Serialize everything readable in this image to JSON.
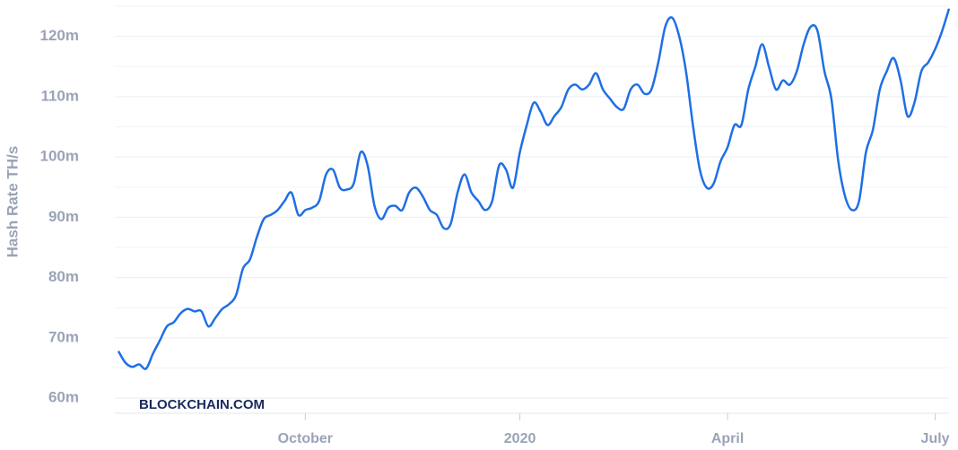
{
  "chart_data": {
    "type": "line",
    "y_label": "Hash Rate TH/s",
    "watermark": "BLOCKCHAIN.COM",
    "categories": [
      null,
      null,
      null,
      null,
      null,
      null,
      null,
      null,
      null,
      null,
      null,
      null,
      null,
      null,
      null,
      null,
      null,
      null,
      null,
      null,
      null,
      null,
      null,
      null,
      null,
      null,
      null,
      "October",
      null,
      null,
      null,
      null,
      null,
      null,
      null,
      null,
      null,
      null,
      null,
      null,
      null,
      null,
      null,
      null,
      null,
      null,
      null,
      null,
      null,
      null,
      null,
      null,
      null,
      null,
      null,
      null,
      null,
      null,
      "2020",
      null,
      null,
      null,
      null,
      null,
      null,
      null,
      null,
      null,
      null,
      null,
      null,
      null,
      null,
      null,
      null,
      null,
      null,
      null,
      null,
      null,
      null,
      null,
      null,
      null,
      null,
      null,
      null,
      null,
      "April",
      null,
      null,
      null,
      null,
      null,
      null,
      null,
      null,
      null,
      null,
      null,
      null,
      null,
      null,
      null,
      null,
      null,
      null,
      null,
      null,
      null,
      null,
      null,
      null,
      null,
      null,
      null,
      null,
      null,
      "July",
      null,
      null
    ],
    "series": [
      {
        "name": "Hash Rate",
        "color": "#1f6fe5",
        "values": [
          67800000,
          65900000,
          65200000,
          65600000,
          64900000,
          67400000,
          69600000,
          71900000,
          72600000,
          74100000,
          74800000,
          74400000,
          74400000,
          71900000,
          73300000,
          74800000,
          75600000,
          77100000,
          81500000,
          83000000,
          86700000,
          89700000,
          90400000,
          91200000,
          92700000,
          94100000,
          90400000,
          91200000,
          91600000,
          92700000,
          97100000,
          97900000,
          94900000,
          94600000,
          95600000,
          100800000,
          98600000,
          91900000,
          89700000,
          91600000,
          91900000,
          91200000,
          94100000,
          94900000,
          93400000,
          91200000,
          90400000,
          88200000,
          88900000,
          94100000,
          97100000,
          94100000,
          92700000,
          91200000,
          92700000,
          98600000,
          97900000,
          94900000,
          100800000,
          105300000,
          109000000,
          107500000,
          105300000,
          106800000,
          108300000,
          111200000,
          112000000,
          111200000,
          112000000,
          113900000,
          111200000,
          109700000,
          108300000,
          108000000,
          111200000,
          112000000,
          110500000,
          111200000,
          115700000,
          121600000,
          123100000,
          120100000,
          114200000,
          105300000,
          97900000,
          94900000,
          95600000,
          99300000,
          101600000,
          105300000,
          105300000,
          111200000,
          114900000,
          118700000,
          114900000,
          111200000,
          112700000,
          112000000,
          114200000,
          118700000,
          121600000,
          120900000,
          114200000,
          109700000,
          99300000,
          93400000,
          91200000,
          92700000,
          100800000,
          104500000,
          111200000,
          114200000,
          116400000,
          112700000,
          106800000,
          109000000,
          114200000,
          115700000,
          117900000,
          120900000,
          124600000
        ]
      }
    ],
    "ylim": [
      57500000,
      125000000
    ],
    "yticks": [
      {
        "value": 60000000,
        "label": "60m"
      },
      {
        "value": 70000000,
        "label": "70m"
      },
      {
        "value": 80000000,
        "label": "80m"
      },
      {
        "value": 90000000,
        "label": "90m"
      },
      {
        "value": 100000000,
        "label": "100m"
      },
      {
        "value": 110000000,
        "label": "110m"
      },
      {
        "value": 120000000,
        "label": "120m"
      }
    ],
    "minor_yticks": [
      65000000,
      75000000,
      85000000,
      95000000,
      105000000,
      115000000,
      125000000
    ],
    "grid": true
  }
}
